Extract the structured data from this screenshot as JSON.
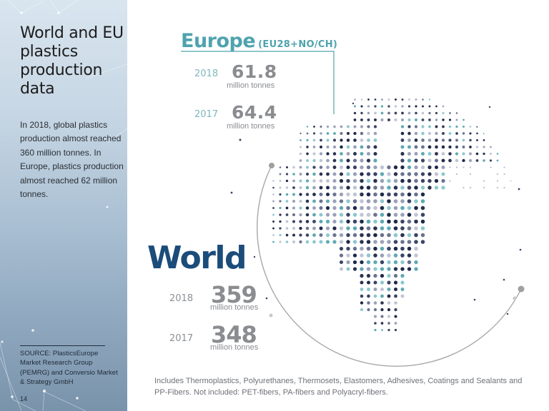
{
  "sidebar": {
    "title": "World and EU plastics production data",
    "body": "In 2018, global plastics production almost reached 360 million tonnes. In Europe, plastics production almost reached 62 million tonnes.",
    "source": "SOURCE: PlasticsEurope Market Research Group (PEMRG) and Conversio Market & Strategy GmbH",
    "page_number": "14"
  },
  "europe": {
    "heading": "Europe",
    "subheading": "(EU28+NO/CH)",
    "stats": [
      {
        "year": "2018",
        "value": "61.8",
        "unit": "million tonnes"
      },
      {
        "year": "2017",
        "value": "64.4",
        "unit": "million tonnes"
      }
    ]
  },
  "world": {
    "heading": "World",
    "stats": [
      {
        "year": "2018",
        "value": "359",
        "unit": "million tonnes"
      },
      {
        "year": "2017",
        "value": "348",
        "unit": "million tonnes"
      }
    ]
  },
  "footnote": "Includes Thermoplastics, Polyurethanes, Thermosets, Elastomers, Adhesives, Coatings and Sealants and PP-Fibers. Not included: PET-fibers, PA-fibers and Polyacryl-fibers.",
  "colors": {
    "europe_accent": "#4fa3ad",
    "world_accent": "#1b4c7a",
    "value_gray": "#8a8c90",
    "sidebar_top": "#d9e5ef",
    "sidebar_bottom": "#7993ab"
  }
}
